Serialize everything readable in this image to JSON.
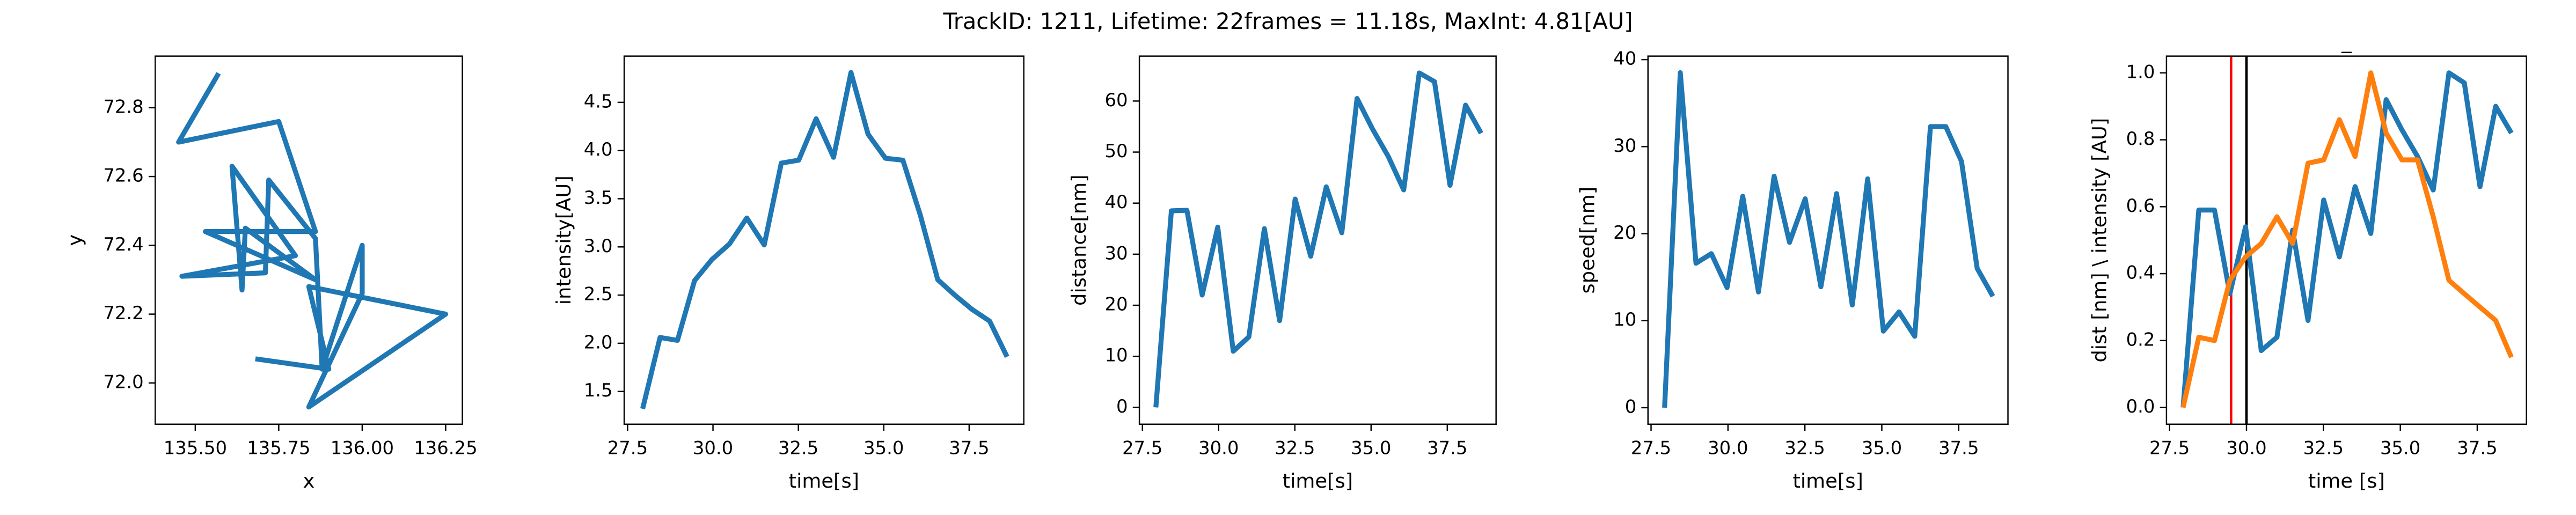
{
  "title": "TrackID: 1211, Lifetime: 22frames = 11.18s, MaxInt: 4.81[AU]",
  "chart_data": [
    {
      "type": "line",
      "xlabel": "x",
      "ylabel": "y",
      "x": [
        135.57,
        135.45,
        135.75,
        135.86,
        135.53,
        135.86,
        135.65,
        135.64,
        135.61,
        135.8,
        135.46,
        135.71,
        135.72,
        135.86,
        135.88,
        136.0,
        136.0,
        135.84,
        136.25,
        135.84,
        135.9,
        135.68
      ],
      "series": [
        {
          "color": "#1f77b4",
          "values": [
            72.9,
            72.7,
            72.76,
            72.44,
            72.44,
            72.3,
            72.45,
            72.27,
            72.63,
            72.37,
            72.31,
            72.32,
            72.59,
            72.42,
            72.04,
            72.4,
            72.26,
            71.93,
            72.2,
            72.28,
            72.04,
            72.07
          ]
        }
      ],
      "xlim": [
        135.38,
        136.3
      ],
      "xticks": [
        {
          "value": 135.5,
          "label": "135.50"
        },
        {
          "value": 135.75,
          "label": "135.75"
        },
        {
          "value": 136.0,
          "label": "136.00"
        },
        {
          "value": 136.25,
          "label": "136.25"
        }
      ],
      "ylim": [
        71.88,
        72.95
      ],
      "yticks": [
        {
          "value": 72.0,
          "label": "72.0"
        },
        72.2,
        72.4,
        72.6,
        72.8
      ]
    },
    {
      "type": "line",
      "xlabel": "time[s]",
      "ylabel": "intensity[AU]",
      "x": [
        27.94,
        28.45,
        28.96,
        29.46,
        29.97,
        30.48,
        30.99,
        31.5,
        32.0,
        32.51,
        33.02,
        33.53,
        34.04,
        34.54,
        35.05,
        35.56,
        36.07,
        36.58,
        37.08,
        37.59,
        38.1,
        38.61
      ],
      "series": [
        {
          "color": "#1f77b4",
          "values": [
            1.32,
            2.06,
            2.03,
            2.65,
            2.87,
            3.03,
            3.3,
            3.02,
            3.87,
            3.9,
            4.33,
            3.93,
            4.81,
            4.17,
            3.92,
            3.9,
            3.33,
            2.66,
            2.5,
            2.35,
            2.23,
            1.86
          ]
        }
      ],
      "xlim": [
        27.4,
        39.1
      ],
      "xticks": [
        27.5,
        {
          "value": 30,
          "label": "30.0"
        },
        32.5,
        {
          "value": 35,
          "label": "35.0"
        },
        37.5
      ],
      "ylim": [
        1.16,
        4.98
      ],
      "yticks": [
        1.5,
        {
          "value": 2,
          "label": "2.0"
        },
        2.5,
        {
          "value": 3,
          "label": "3.0"
        },
        3.5,
        {
          "value": 4,
          "label": "4.0"
        },
        4.5
      ]
    },
    {
      "type": "line",
      "xlabel": "time[s]",
      "ylabel": "distance[nm]",
      "x": [
        27.94,
        28.45,
        28.96,
        29.46,
        29.97,
        30.48,
        30.99,
        31.5,
        32.0,
        32.51,
        33.02,
        33.53,
        34.04,
        34.54,
        35.05,
        35.56,
        36.07,
        36.58,
        37.08,
        37.59,
        38.1,
        38.61
      ],
      "series": [
        {
          "color": "#1f77b4",
          "values": [
            0,
            38.5,
            38.6,
            22,
            35.3,
            11,
            13.8,
            35,
            17,
            40.8,
            29.6,
            43.2,
            34.2,
            60.5,
            54.5,
            49.2,
            42.6,
            65.5,
            63.8,
            43.5,
            59.2,
            53.7
          ]
        }
      ],
      "xlim": [
        27.4,
        39.1
      ],
      "xticks": [
        27.5,
        {
          "value": 30,
          "label": "30.0"
        },
        32.5,
        {
          "value": 35,
          "label": "35.0"
        },
        37.5
      ],
      "ylim": [
        -3.3,
        68.8
      ],
      "yticks": [
        0,
        10,
        20,
        30,
        40,
        50,
        60
      ]
    },
    {
      "type": "line",
      "xlabel": "time[s]",
      "ylabel": "speed[nm]",
      "x": [
        27.94,
        28.45,
        28.96,
        29.46,
        29.97,
        30.48,
        30.99,
        31.5,
        32.0,
        32.51,
        33.02,
        33.53,
        34.04,
        34.54,
        35.05,
        35.56,
        36.07,
        36.58,
        37.08,
        37.59,
        38.1,
        38.61
      ],
      "series": [
        {
          "color": "#1f77b4",
          "values": [
            0,
            38.5,
            16.6,
            17.7,
            13.8,
            24.3,
            13.3,
            26.6,
            19,
            24,
            13.9,
            24.6,
            11.8,
            26.3,
            8.8,
            11,
            8.2,
            32.3,
            32.3,
            28.3,
            16,
            12.8
          ]
        }
      ],
      "xlim": [
        27.4,
        39.1
      ],
      "xticks": [
        27.5,
        {
          "value": 30,
          "label": "30.0"
        },
        32.5,
        {
          "value": 35,
          "label": "35.0"
        },
        37.5
      ],
      "ylim": [
        -1.9,
        40.4
      ],
      "yticks": [
        0,
        10,
        20,
        30,
        40
      ]
    },
    {
      "type": "line",
      "title": "_",
      "xlabel": "time [s]",
      "ylabel": "dist [nm] \\ intensity [AU]",
      "x": [
        27.94,
        28.45,
        28.96,
        29.46,
        29.97,
        30.48,
        30.99,
        31.5,
        32.0,
        32.51,
        33.02,
        33.53,
        34.04,
        34.54,
        35.05,
        35.56,
        36.07,
        36.58,
        37.08,
        37.59,
        38.1,
        38.61
      ],
      "series": [
        {
          "color": "#1f77b4",
          "values": [
            0,
            0.59,
            0.59,
            0.34,
            0.54,
            0.17,
            0.21,
            0.53,
            0.26,
            0.62,
            0.45,
            0.66,
            0.52,
            0.92,
            0.83,
            0.75,
            0.65,
            1.0,
            0.97,
            0.66,
            0.9,
            0.82
          ]
        },
        {
          "color": "#ff7f0e",
          "values": [
            0,
            0.21,
            0.2,
            0.38,
            0.45,
            0.49,
            0.57,
            0.49,
            0.73,
            0.74,
            0.86,
            0.75,
            1.0,
            0.82,
            0.74,
            0.74,
            0.57,
            0.38,
            0.34,
            0.3,
            0.26,
            0.15
          ]
        }
      ],
      "vlines": [
        {
          "value": 29.5,
          "color": "red"
        },
        {
          "value": 30.0,
          "color": "black"
        }
      ],
      "xlim": [
        27.4,
        39.1
      ],
      "xticks": [
        27.5,
        {
          "value": 30,
          "label": "30.0"
        },
        32.5,
        {
          "value": 35,
          "label": "35.0"
        },
        37.5
      ],
      "ylim": [
        -0.05,
        1.05
      ],
      "yticks": [
        {
          "value": 0,
          "label": "0.0"
        },
        0.2,
        0.4,
        0.6,
        0.8,
        {
          "value": 1,
          "label": "1.0"
        }
      ]
    }
  ]
}
